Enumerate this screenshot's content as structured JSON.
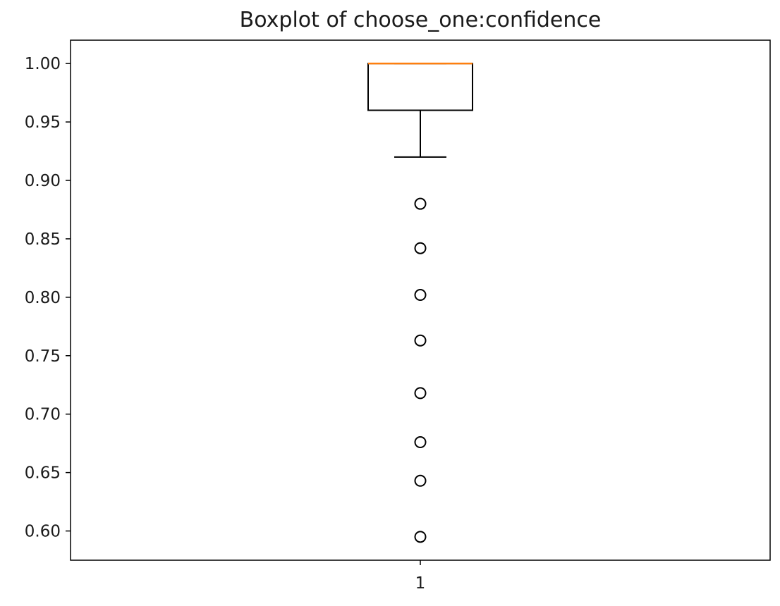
{
  "chart_data": {
    "type": "boxplot",
    "title": "Boxplot of choose_one:confidence",
    "xlabel": "",
    "ylabel": "",
    "categories": [
      "1"
    ],
    "ylim": [
      0.575,
      1.02
    ],
    "yticks": [
      "0.60",
      "0.65",
      "0.70",
      "0.75",
      "0.80",
      "0.85",
      "0.90",
      "0.95",
      "1.00"
    ],
    "ytick_values": [
      0.6,
      0.65,
      0.7,
      0.75,
      0.8,
      0.85,
      0.9,
      0.95,
      1.0
    ],
    "grid": false,
    "boxes": [
      {
        "category": "1",
        "whisker_low": 0.92,
        "q1": 0.96,
        "median": 1.0,
        "q3": 1.0,
        "whisker_high": 1.0,
        "outliers": [
          0.88,
          0.842,
          0.802,
          0.763,
          0.718,
          0.676,
          0.643,
          0.595
        ]
      }
    ],
    "colors": {
      "box": "#000000",
      "median": "#ff7f0e"
    }
  }
}
